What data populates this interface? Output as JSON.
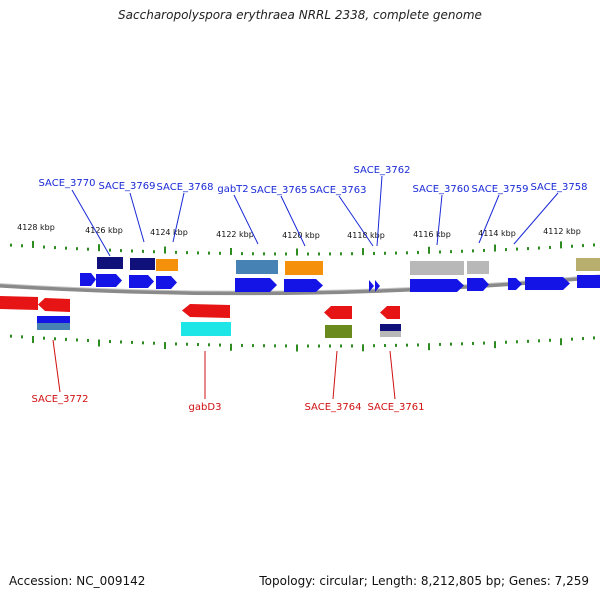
{
  "title": "Saccharopolyspora erythraea NRRL 2338, complete genome",
  "footer": {
    "accession": "Accession: NC_009142",
    "summary": "Topology: circular; Length: 8,212,805 bp; Genes: 7,259"
  },
  "kbp_labels": [
    "4128 kbp",
    "4126 kbp",
    "4124 kbp",
    "4122 kbp",
    "4120 kbp",
    "4118 kbp",
    "4116 kbp",
    "4114 kbp",
    "4112 kbp"
  ],
  "top_gene_labels": [
    "SACE_3770",
    "SACE_3769",
    "SACE_3768",
    "gabT2",
    "SACE_3765",
    "SACE_3763",
    "SACE_3762",
    "SACE_3760",
    "SACE_3759",
    "SACE_3758"
  ],
  "bottom_gene_labels": [
    "SACE_3772",
    "gabD3",
    "SACE_3764",
    "SACE_3761"
  ],
  "colors": {
    "forward": "#1414e6",
    "reverse": "#e61414",
    "navy": "#10107a",
    "orange": "#f5900a",
    "steelblue": "#4682b4",
    "gray": "#b8b8b8",
    "khaki": "#b8ae6e",
    "cyan": "#1fe6e6",
    "olive": "#6b8a1e",
    "tick": "#2e8b22",
    "backbone": "#808080"
  }
}
